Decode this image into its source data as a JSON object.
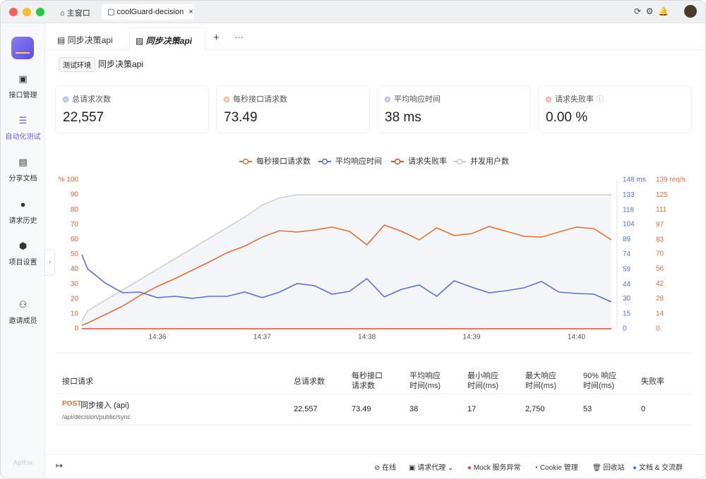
{
  "window": {
    "tabs": [
      "主窗口",
      "coolGuard-decision"
    ]
  },
  "sidebar": {
    "items": [
      "接口管理",
      "自动化测试",
      "分享文档",
      "请求历史",
      "项目设置",
      "邀请成员"
    ],
    "brand": "Apifox"
  },
  "tabs": [
    "同步决策api",
    "同步决策api"
  ],
  "header": {
    "env": "测试环境",
    "title": "同步决策api"
  },
  "stats": [
    {
      "label": "总请求次数",
      "value": "22,557"
    },
    {
      "label": "每秒接口请求数",
      "value": "73.49"
    },
    {
      "label": "平均响应时间",
      "value": "38 ms"
    },
    {
      "label": "请求失败率",
      "value": "0.00 %"
    }
  ],
  "chart_data": {
    "type": "line",
    "categories": [
      null,
      null,
      null,
      null,
      null,
      "14:36",
      null,
      null,
      null,
      null,
      null,
      "14:37",
      null,
      null,
      null,
      null,
      null,
      "14:38",
      null,
      null,
      null,
      null,
      null,
      "14:39",
      null,
      null,
      null,
      null,
      null,
      "14:40",
      null,
      null
    ],
    "series": [
      {
        "name": "每秒接口请求数",
        "color": "#e0703a",
        "axis": "y3",
        "values": [
          3.3,
          5.3,
          13.2,
          21.1,
          31,
          39.5,
          46.8,
          54.7,
          62.6,
          71.1,
          77.1,
          85.6,
          91.6,
          90.3,
          92.2,
          94.9,
          90.9,
          78.4,
          96.8,
          90.9,
          83,
          94.2,
          87,
          88.9,
          95.5,
          90.9,
          86.3,
          85.6,
          90.3,
          94.9,
          93.5,
          83
        ]
      },
      {
        "name": "平均响应时间",
        "color": "#5b6ee1",
        "axis": "y2",
        "values": [
          73.6,
          59.6,
          45.6,
          35.8,
          36.5,
          30.9,
          32.3,
          30.2,
          32.3,
          32.3,
          36.5,
          30.9,
          36.5,
          44.9,
          42.8,
          34.4,
          37.2,
          49.8,
          31.6,
          39.3,
          43.5,
          32.3,
          47.7,
          41.4,
          35.8,
          37.9,
          40.7,
          47,
          36.5,
          35.1,
          34.4,
          26.7
        ]
      },
      {
        "name": "请求失败率",
        "color": "#e04a3a",
        "axis": "y",
        "values": [
          0,
          0,
          0,
          0,
          0,
          0,
          0,
          0,
          0,
          0,
          0,
          0,
          0,
          0,
          0,
          0,
          0,
          0,
          0,
          0,
          0,
          0,
          0,
          0,
          0,
          0,
          0,
          0,
          0,
          0,
          0,
          0
        ]
      },
      {
        "name": "并发用户数",
        "color": "#c9ccd3",
        "axis": "y",
        "values": [
          5,
          12,
          19,
          26,
          33,
          40,
          47,
          54,
          61,
          68,
          75,
          83,
          88,
          90,
          90,
          90,
          90,
          90,
          90,
          90,
          90,
          90,
          90,
          90,
          90,
          90,
          90,
          90,
          90,
          90,
          90,
          90
        ]
      }
    ],
    "ylim": [
      0,
      100
    ],
    "yticks": [
      0,
      10,
      20,
      30,
      40,
      50,
      60,
      70,
      80,
      90,
      {
        "value": 100,
        "label": "% 100"
      }
    ],
    "y2lim": [
      0,
      148
    ],
    "y2ticks": [
      0,
      15,
      30,
      44,
      59,
      74,
      89,
      104,
      118,
      133,
      {
        "value": 148,
        "label": "148 ms"
      }
    ],
    "y3lim": [
      0,
      139
    ],
    "y3ticks": [
      {
        "value": 0,
        "label": "0."
      },
      14,
      28,
      42,
      56,
      70,
      83,
      97,
      111,
      125,
      {
        "value": 139,
        "label": "139 req/s"
      }
    ],
    "grid": false,
    "legend": "top"
  },
  "table": {
    "headers": [
      "接口请求",
      "总请求数",
      "每秒接口\n请求数",
      "平均响应\n时间(ms)",
      "最小响应\n时间(ms)",
      "最大响应\n时间(ms)",
      "90% 响应\n时间(ms)",
      "失败率"
    ],
    "rows": [
      {
        "method": "POST",
        "name": "同步接入 (api)",
        "path": "/api/decision/public/sync",
        "cells": [
          "22,557",
          "73.49",
          "38",
          "17",
          "2,750",
          "53",
          "0"
        ]
      }
    ]
  },
  "footer": [
    "在线",
    "请求代理",
    "Mock 服务异常",
    "Cookie 管理",
    "回收站",
    "文档 & 交流群"
  ]
}
